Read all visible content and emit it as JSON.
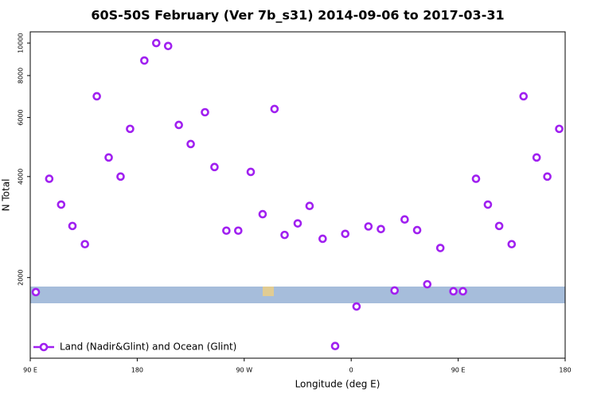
{
  "chart_data": {
    "type": "scatter",
    "title": "60S-50S February (Ver 7b_s31)   2014-09-06 to 2017-03-31",
    "x_label": "Longitude (deg E)",
    "y_label": "N Total",
    "x": [
      94.7,
      106,
      116,
      125.5,
      136,
      146,
      156,
      166,
      174,
      186,
      196,
      206,
      215,
      225,
      237,
      245,
      255,
      265,
      275.5,
      285.5,
      295.5,
      304,
      315,
      325,
      336,
      346.5,
      355,
      364.5,
      374.5,
      385,
      396.5,
      405,
      415.5,
      424,
      435,
      446,
      454,
      465,
      475,
      484.5,
      495,
      505,
      516,
      525,
      535
    ],
    "series": [
      {
        "name": "Land (Nadir&Glint) and Ocean (Glint)",
        "color": "#a020f0",
        "values": [
          1810,
          3940,
          3300,
          2850,
          2515,
          6940,
          4560,
          4000,
          5550,
          8870,
          10000,
          9800,
          5700,
          5000,
          6220,
          4270,
          2760,
          2760,
          4130,
          3090,
          6360,
          2680,
          2900,
          3270,
          2610,
          1250,
          2700,
          1640,
          2840,
          2790,
          1830,
          2980,
          2770,
          1910,
          2450,
          1820,
          1820,
          3940,
          3300,
          2850,
          2515,
          6940,
          4560,
          4000,
          5550
        ]
      }
    ],
    "xlim": [
      90,
      540
    ],
    "xticks": [
      {
        "value": 90,
        "label": "90 E"
      },
      180,
      {
        "value": 270,
        "label": "90 W"
      },
      {
        "value": 360,
        "label": "0"
      },
      {
        "value": 450,
        "label": "90 E"
      },
      {
        "value": 540,
        "label": "180"
      }
    ],
    "ylim": [
      1150,
      10800
    ],
    "yticks": [
      2000,
      4000,
      6000,
      8000,
      10000
    ],
    "log_y": true,
    "legend": "lower left"
  }
}
